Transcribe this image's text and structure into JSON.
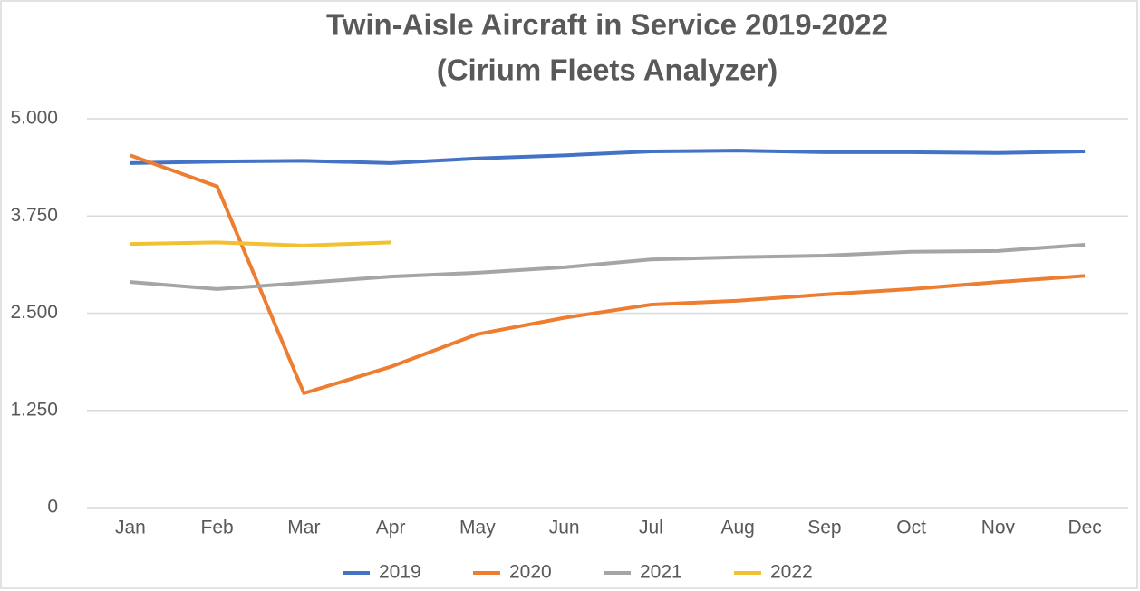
{
  "chart_data": {
    "type": "line",
    "title": "Twin-Aisle Aircraft in Service 2019-2022",
    "subtitle": "(Cirium Fleets Analyzer)",
    "categories": [
      "Jan",
      "Feb",
      "Mar",
      "Apr",
      "May",
      "Jun",
      "Jul",
      "Aug",
      "Sep",
      "Oct",
      "Nov",
      "Dec"
    ],
    "series": [
      {
        "name": "2019",
        "color": "#4472c4",
        "values": [
          4430,
          4450,
          4460,
          4430,
          4490,
          4530,
          4580,
          4590,
          4570,
          4570,
          4560,
          4580
        ]
      },
      {
        "name": "2020",
        "color": "#ed7d31",
        "values": [
          4530,
          4130,
          1470,
          1810,
          2230,
          2440,
          2610,
          2660,
          2740,
          2810,
          2900,
          2980
        ]
      },
      {
        "name": "2021",
        "color": "#a5a5a5",
        "values": [
          2900,
          2810,
          2890,
          2970,
          3020,
          3090,
          3190,
          3220,
          3240,
          3290,
          3300,
          3380
        ]
      },
      {
        "name": "2022",
        "color": "#f4c033",
        "values": [
          3390,
          3410,
          3370,
          3410,
          null,
          null,
          null,
          null,
          null,
          null,
          null,
          null
        ]
      }
    ],
    "ylim": [
      0,
      5000
    ],
    "yticks": [
      0,
      {
        "value": 1250,
        "label": "1.250"
      },
      {
        "value": 2500,
        "label": "2.500"
      },
      {
        "value": 3750,
        "label": "3.750"
      },
      {
        "value": 5000,
        "label": "5.000"
      }
    ],
    "grid": true,
    "legend": "bottom"
  }
}
